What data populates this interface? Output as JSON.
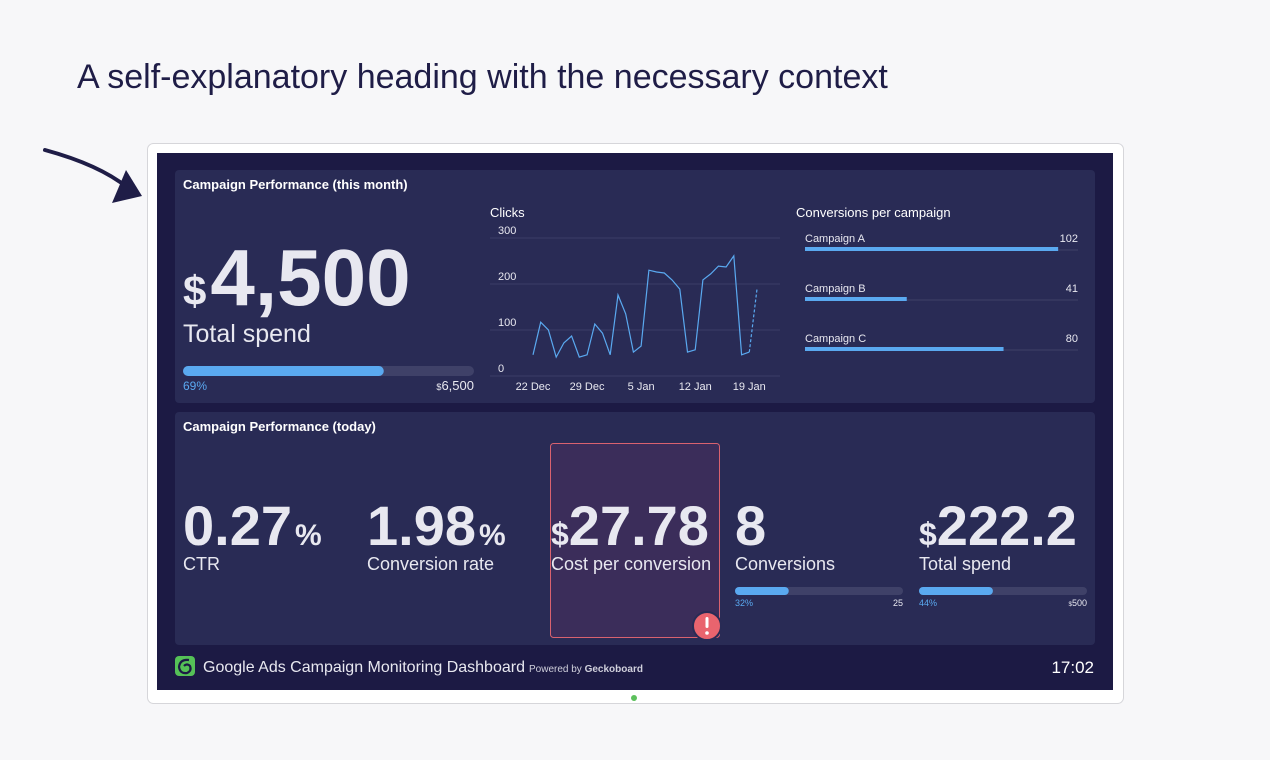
{
  "heading": "A self-explanatory heading with the necessary context",
  "dashboard": {
    "month_panel": {
      "title": "Campaign Performance (this month)",
      "total_spend": {
        "currency": "$",
        "amount": "4,500",
        "label": "Total spend",
        "progress": {
          "value": 69,
          "label": "69%"
        },
        "goal": {
          "currency": "$",
          "amount": "6,500"
        }
      },
      "clicks": {
        "type": "line",
        "title": "Clicks",
        "categories": [
          "22 Dec",
          null,
          null,
          null,
          null,
          null,
          null,
          "29 Dec",
          null,
          null,
          null,
          null,
          null,
          null,
          "5 Jan",
          null,
          null,
          null,
          null,
          null,
          null,
          "12 Jan",
          null,
          null,
          null,
          null,
          null,
          null,
          "19 Jan",
          null
        ],
        "values": [
          46,
          117,
          100,
          41,
          72,
          87,
          41,
          46,
          113,
          93,
          46,
          176,
          135,
          52,
          65,
          230,
          226,
          224,
          209,
          189,
          52,
          57,
          209,
          222,
          239,
          237,
          261,
          46,
          52,
          189
        ],
        "color": "#5aa9f0",
        "ylim": [
          0,
          300
        ],
        "yticks": [
          0,
          100,
          200,
          300
        ],
        "grid": true
      },
      "conversions": {
        "type": "bar",
        "title": "Conversions per campaign",
        "categories": [
          "Campaign A",
          "Campaign B",
          "Campaign C"
        ],
        "values": [
          102,
          41,
          80
        ],
        "color": "#5aa9f0",
        "xlim": [
          0,
          110
        ]
      }
    },
    "today_panel": {
      "title": "Campaign Performance (today)",
      "kpis": [
        {
          "value": "0.27",
          "unit": "%",
          "label": "CTR"
        },
        {
          "value": "1.98",
          "unit": "%",
          "label": "Conversion rate"
        },
        {
          "currency": "$",
          "value": "27.78",
          "label": "Cost per conversion",
          "alert": true
        },
        {
          "value": "8",
          "label": "Conversions",
          "progress": {
            "value": 32,
            "label": "32%"
          },
          "goal": {
            "amount": "25"
          }
        },
        {
          "currency": "$",
          "value": "222.2",
          "label": "Total spend",
          "progress": {
            "value": 44,
            "label": "44%"
          },
          "goal": {
            "currency": "$",
            "amount": "500"
          }
        }
      ]
    },
    "footer": {
      "title": "Google Ads Campaign Monitoring Dashboard",
      "powered_by": "Powered by",
      "brand": "Geckoboard",
      "time": "17:02"
    }
  }
}
